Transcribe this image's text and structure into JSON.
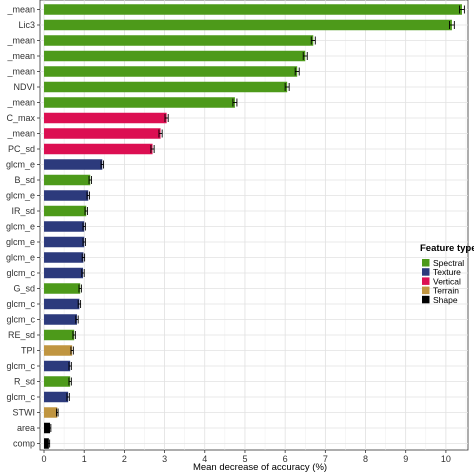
{
  "chart_data": {
    "type": "bar",
    "orientation": "horizontal",
    "xlabel": "Mean decrease of accuracy (%)",
    "ylabel": "",
    "xlim": [
      -0.1,
      10.55
    ],
    "xticks": [
      0,
      1,
      2,
      3,
      4,
      5,
      6,
      7,
      8,
      9,
      10
    ],
    "grid": true,
    "legend_position": "right",
    "legend_title": "Feature type",
    "legend": [
      {
        "label": "Spectral",
        "color": "#4d9a1a"
      },
      {
        "label": "Texture",
        "color": "#2c3a7c"
      },
      {
        "label": "Vertical",
        "color": "#dc0f52"
      },
      {
        "label": "Terrain",
        "color": "#c09540"
      },
      {
        "label": "Shape",
        "color": "#000000"
      }
    ],
    "categories": [
      "_mean",
      "Lic3",
      "_mean",
      "_mean",
      "_mean",
      "NDVI",
      "_mean",
      "C_max",
      "_mean",
      "PC_sd",
      "glcm_e",
      "B_sd",
      "glcm_e",
      "IR_sd",
      "glcm_e",
      "glcm_e",
      "glcm_e",
      "glcm_c",
      "G_sd",
      "glcm_c",
      "glcm_c",
      "RE_sd",
      "TPI",
      "glcm_c",
      "R_sd",
      "glcm_c",
      "STWI",
      "area",
      "comp"
    ],
    "values": [
      10.4,
      10.15,
      6.7,
      6.5,
      6.3,
      6.05,
      4.75,
      3.05,
      2.9,
      2.7,
      1.45,
      1.15,
      1.1,
      1.05,
      1.0,
      1.0,
      0.98,
      0.97,
      0.9,
      0.88,
      0.82,
      0.75,
      0.7,
      0.65,
      0.65,
      0.6,
      0.33,
      0.15,
      0.12
    ],
    "errors": [
      0.06,
      0.06,
      0.05,
      0.05,
      0.05,
      0.05,
      0.05,
      0.04,
      0.04,
      0.04,
      0.03,
      0.03,
      0.03,
      0.03,
      0.03,
      0.03,
      0.03,
      0.03,
      0.03,
      0.03,
      0.03,
      0.03,
      0.03,
      0.03,
      0.03,
      0.03,
      0.02,
      0.02,
      0.02
    ],
    "types": [
      "Spectral",
      "Spectral",
      "Spectral",
      "Spectral",
      "Spectral",
      "Spectral",
      "Spectral",
      "Vertical",
      "Vertical",
      "Vertical",
      "Texture",
      "Spectral",
      "Texture",
      "Spectral",
      "Texture",
      "Texture",
      "Texture",
      "Texture",
      "Spectral",
      "Texture",
      "Texture",
      "Spectral",
      "Terrain",
      "Texture",
      "Spectral",
      "Texture",
      "Terrain",
      "Shape",
      "Shape"
    ]
  }
}
